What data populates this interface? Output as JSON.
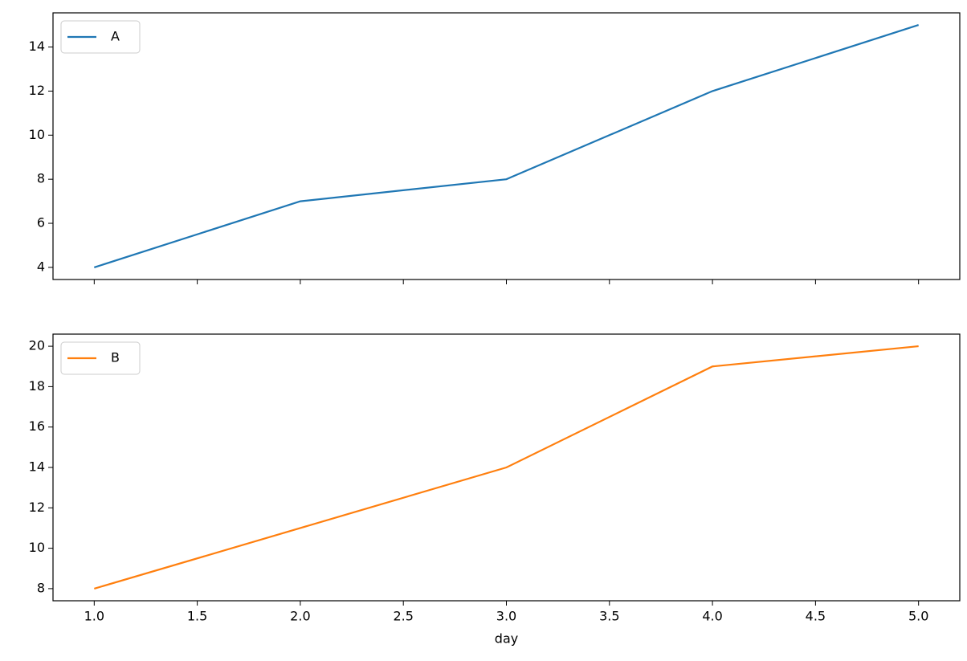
{
  "chart_data": [
    {
      "type": "line",
      "x": [
        1,
        2,
        3,
        4,
        5
      ],
      "series": [
        {
          "name": "A",
          "color": "#1f77b4",
          "values": [
            4,
            7,
            8,
            12,
            15
          ]
        }
      ],
      "xlim": [
        0.8,
        5.2
      ],
      "ylim": [
        3.45,
        15.55
      ],
      "yticks": [
        4,
        6,
        8,
        10,
        12,
        14
      ],
      "legend": "upper-left"
    },
    {
      "type": "line",
      "x": [
        1,
        2,
        3,
        4,
        5
      ],
      "series": [
        {
          "name": "B",
          "color": "#ff7f0e",
          "values": [
            8,
            11,
            14,
            19,
            20
          ]
        }
      ],
      "xlim": [
        0.8,
        5.2
      ],
      "ylim": [
        7.4,
        20.6
      ],
      "yticks": [
        8,
        10,
        12,
        14,
        16,
        18,
        20
      ],
      "xticks": [
        {
          "value": 1,
          "label": "1.0"
        },
        {
          "value": 1.5,
          "label": "1.5"
        },
        {
          "value": 2,
          "label": "2.0"
        },
        {
          "value": 2.5,
          "label": "2.5"
        },
        {
          "value": 3,
          "label": "3.0"
        },
        {
          "value": 3.5,
          "label": "3.5"
        },
        {
          "value": 4,
          "label": "4.0"
        },
        {
          "value": 4.5,
          "label": "4.5"
        },
        {
          "value": 5,
          "label": "5.0"
        }
      ],
      "x_label": "day",
      "legend": "upper-left"
    }
  ]
}
